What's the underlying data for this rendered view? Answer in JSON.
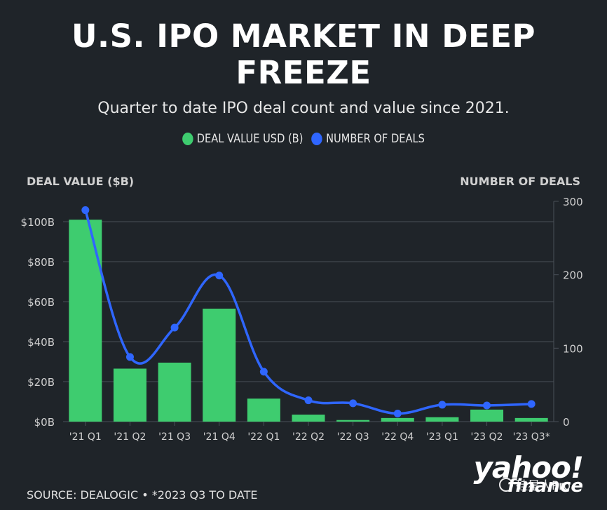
{
  "header": {
    "title_line1": "U.S. IPO MARKET IN DEEP",
    "title_line2": "FREEZE",
    "subtitle": "Quarter to date IPO deal count and value since 2021."
  },
  "legend": {
    "value_label": "DEAL VALUE USD (B)",
    "count_label": "NUMBER OF DEALS"
  },
  "colors": {
    "background": "#1f2429",
    "bar": "#3ecc6f",
    "line": "#2f66ff",
    "grid": "#4a5058"
  },
  "axis_titles": {
    "left": "DEAL VALUE ($B)",
    "right": "NUMBER OF DEALS"
  },
  "footer": {
    "source": "SOURCE: DEALOGIC • *2023 Q3 TO DATE",
    "logo_main": "yahoo!",
    "logo_sub": "finance",
    "watermark": "硅星人Pro"
  },
  "chart_data": {
    "type": "bar",
    "categories": [
      "'21 Q1",
      "'21 Q2",
      "'21 Q3",
      "'21 Q4",
      "'22 Q1",
      "'22 Q2",
      "'22 Q3",
      "'22 Q4",
      "'23 Q1",
      "'23 Q2",
      "'23 Q3*"
    ],
    "series": [
      {
        "name": "DEAL VALUE USD (B)",
        "type": "bar",
        "axis": "left",
        "values": [
          101,
          26.5,
          29.5,
          56.5,
          11.5,
          3.5,
          0.8,
          1.8,
          2.2,
          6,
          1.8
        ]
      },
      {
        "name": "NUMBER OF DEALS",
        "type": "line",
        "axis": "right",
        "values": [
          288,
          88,
          128,
          199,
          68,
          29,
          25,
          11,
          23,
          22,
          24
        ]
      }
    ],
    "left_axis": {
      "ticks": [
        0,
        20,
        40,
        60,
        80,
        100
      ],
      "tick_labels": [
        "$0B",
        "$20B",
        "$40B",
        "$60B",
        "$80B",
        "$100B"
      ],
      "range": [
        0,
        100
      ]
    },
    "right_axis": {
      "ticks": [
        0,
        100,
        200,
        300
      ],
      "tick_labels": [
        "0",
        "100",
        "200",
        "300"
      ],
      "range": [
        0,
        300
      ]
    },
    "grid": true,
    "legend_position": "top-center"
  }
}
